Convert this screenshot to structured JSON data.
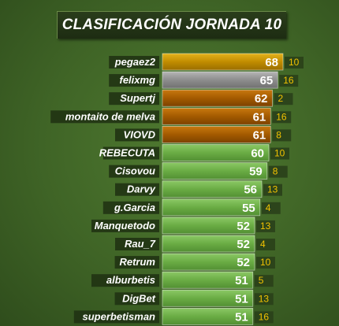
{
  "title": "CLASIFICACIÓN JORNADA 10",
  "colors": {
    "gold": "#c18c00",
    "silver": "#8d8d8d",
    "bronze": "#a35a00",
    "green": "#6aac44",
    "position": "#f2c200"
  },
  "chart_data": {
    "type": "bar",
    "orientation": "horizontal",
    "title": "CLASIFICACIÓN JORNADA 10",
    "categories": [
      "pegaez2",
      "felixmg",
      "Supertj",
      "montaito de melva",
      "VIOVD",
      "REBECUTA",
      "Cisovou",
      "Darvy",
      "g.Garcia",
      "Manquetodo",
      "Rau_7",
      "Retrum",
      "alburbetis",
      "DigBet",
      "superbetisman"
    ],
    "values": [
      68,
      65,
      62,
      61,
      61,
      60,
      59,
      56,
      55,
      52,
      52,
      52,
      51,
      51,
      51
    ],
    "positions": [
      "10",
      "16",
      "2",
      "16",
      "8",
      "10",
      "8",
      "13",
      "4",
      "13",
      "4",
      "10",
      "5",
      "13",
      "16"
    ],
    "bar_colors": [
      "gold",
      "silver",
      "bronze",
      "bronze",
      "bronze",
      "green",
      "green",
      "green",
      "green",
      "green",
      "green",
      "green",
      "green",
      "green",
      "green"
    ],
    "xlim": [
      0,
      68
    ],
    "grid": false,
    "legend": "none"
  }
}
